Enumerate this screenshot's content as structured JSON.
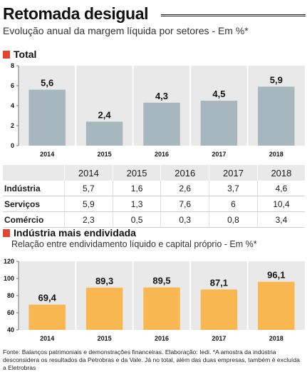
{
  "title": "Retomada desigual",
  "subtitle": "Evolução anual da margem líquida por setores - Em %*",
  "chart_data": [
    {
      "type": "bar",
      "title": "Total",
      "categories": [
        "2014",
        "2015",
        "2016",
        "2017",
        "2018"
      ],
      "values": [
        5.6,
        2.4,
        4.3,
        4.5,
        5.9
      ],
      "value_labels": [
        "5,6",
        "2,4",
        "4,3",
        "4,5",
        "5,9"
      ],
      "ylim": [
        0,
        8
      ],
      "yticks": [
        "0",
        "2",
        "4",
        "6",
        "8"
      ],
      "grid": "vertical separators between years",
      "colors": {
        "bar": "#a7b7be",
        "background": "#e9e9e9"
      }
    },
    {
      "type": "table",
      "columns": [
        "",
        "2014",
        "2015",
        "2016",
        "2017",
        "2018"
      ],
      "rows": [
        [
          "Indústria",
          "5,7",
          "1,6",
          "2,6",
          "3,7",
          "4,6"
        ],
        [
          "Serviços",
          "5,9",
          "1,3",
          "7,6",
          "6",
          "10,4"
        ],
        [
          "Comércio",
          "2,3",
          "0,5",
          "0,3",
          "0,8",
          "3,4"
        ]
      ]
    },
    {
      "type": "bar",
      "title": "Indústria mais endividada",
      "subtitle": "Relação entre endividamento líquido e capital próprio - Em %*",
      "categories": [
        "2014",
        "2015",
        "2016",
        "2017",
        "2018"
      ],
      "values": [
        69.4,
        89.3,
        89.5,
        87.1,
        96.1
      ],
      "value_labels": [
        "69,4",
        "89,3",
        "89,5",
        "87,1",
        "96,1"
      ],
      "ylim": [
        40,
        120
      ],
      "yticks": [
        "40",
        "60",
        "80",
        "100",
        "120"
      ],
      "grid": "vertical separators between years",
      "colors": {
        "bar": "#f8b750",
        "background": "#e9e9e9"
      }
    }
  ],
  "footnote": "Fonte: Balanços patrimoniais e demonstrações financeiras. Elaboração: Iedi. *A amostra da indústria desconsidera os resultados da Petrobras e da Vale. Já no total, além das duas empresas, também é excluída a Eletrobras",
  "colors": {
    "section_marker": "#e2442f"
  }
}
